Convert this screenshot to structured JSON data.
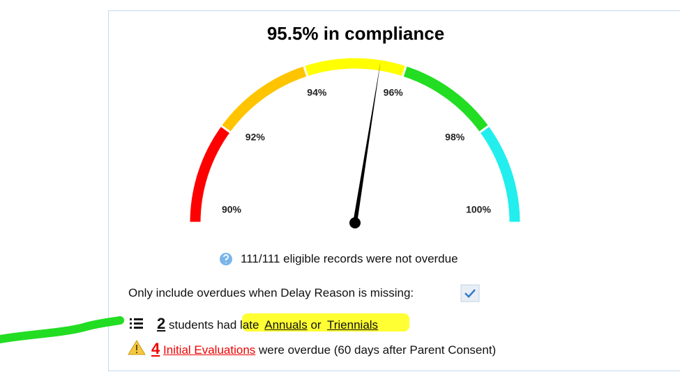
{
  "chart_data": {
    "type": "gauge",
    "title": "95.5% in compliance",
    "value": 95.5,
    "ylim": [
      90,
      100
    ],
    "yticks": [
      {
        "value": 90,
        "label": "90%"
      },
      {
        "value": 92,
        "label": "92%"
      },
      {
        "value": 94,
        "label": "94%"
      },
      {
        "value": 96,
        "label": "96%"
      },
      {
        "value": 98,
        "label": "98%"
      },
      {
        "value": 100,
        "label": "100%"
      }
    ],
    "bands": [
      {
        "from": 90,
        "to": 92,
        "color": "#ff0000"
      },
      {
        "from": 92,
        "to": 94,
        "color": "#ffc400"
      },
      {
        "from": 94,
        "to": 96,
        "color": "#ffff00"
      },
      {
        "from": 96,
        "to": 98,
        "color": "#22dd22"
      },
      {
        "from": 98,
        "to": 100,
        "color": "#22eeee"
      }
    ]
  },
  "info": "111/111 eligible records were not overdue",
  "filter": "Only include overdues when Delay Reason is missing:",
  "late": {
    "count": "2",
    "text": "students had late",
    "link1": "Annuals",
    "or": "or",
    "link2": "Triennials"
  },
  "overdue": {
    "count": "4",
    "link": "Initial Evaluations",
    "text": "were overdue (60 days after Parent Consent)"
  }
}
